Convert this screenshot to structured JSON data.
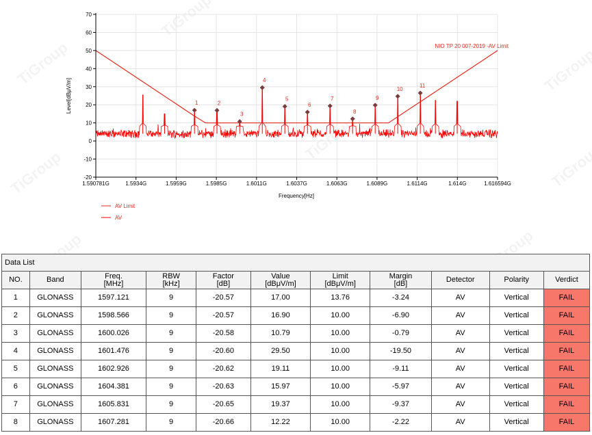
{
  "chart_data": {
    "type": "line",
    "xlabel": "Frequency[Hz]",
    "ylabel": "Level[dBμV/m]",
    "xlim": [
      1.590781,
      1.616594
    ],
    "ylim": [
      -20,
      70
    ],
    "y_ticks": [
      -20,
      -10,
      0,
      10,
      20,
      30,
      40,
      50,
      60,
      70
    ],
    "x_tick_labels": [
      "1.590781G",
      "1.5934G",
      "1.5959G",
      "1.5985G",
      "1.6011G",
      "1.6037G",
      "1.6063G",
      "1.6089G",
      "1.6114G",
      "1.614G",
      "1.616594G"
    ],
    "grid": true,
    "legend_placement": "bottom-left",
    "limit_annotation": "NIO TP 20 007-2019 -AV Limit",
    "series": [
      {
        "name": "AV Limit",
        "color": "#e8291c",
        "x": [
          1.590781,
          1.597121,
          1.59783,
          1.60958,
          1.616594
        ],
        "y": [
          50.0,
          13.76,
          10.0,
          10.0,
          50.0
        ]
      },
      {
        "name": "AV",
        "color": "#ff0000",
        "noise_floor_range": [
          0,
          8
        ],
        "spurs": [
          {
            "x": 1.5938,
            "y": 25.5
          },
          {
            "x": 1.5952,
            "y": 15.0
          },
          {
            "x": 1.6126,
            "y": 22.5
          },
          {
            "x": 1.614,
            "y": 22.0
          }
        ]
      }
    ],
    "markers": [
      {
        "label": "1",
        "x": 1.597121,
        "y": 17.0
      },
      {
        "label": "2",
        "x": 1.598566,
        "y": 16.9
      },
      {
        "label": "3",
        "x": 1.600026,
        "y": 10.79
      },
      {
        "label": "4",
        "x": 1.601476,
        "y": 29.5
      },
      {
        "label": "5",
        "x": 1.602926,
        "y": 19.11
      },
      {
        "label": "6",
        "x": 1.604381,
        "y": 15.97
      },
      {
        "label": "7",
        "x": 1.605831,
        "y": 19.37
      },
      {
        "label": "8",
        "x": 1.607281,
        "y": 12.22
      },
      {
        "label": "9",
        "x": 1.608731,
        "y": 19.8
      },
      {
        "label": "10",
        "x": 1.610181,
        "y": 24.7
      },
      {
        "label": "11",
        "x": 1.611631,
        "y": 26.5
      }
    ]
  },
  "watermark_text": "TiGroup",
  "table": {
    "title": "Data List",
    "headers": [
      [
        "NO."
      ],
      [
        "Band"
      ],
      [
        "Freq.",
        "[MHz]"
      ],
      [
        "RBW",
        "[kHz]"
      ],
      [
        "Factor",
        "[dB]"
      ],
      [
        "Value",
        "[dBμV/m]"
      ],
      [
        "Limit",
        "[dBμV/m]"
      ],
      [
        "Margin",
        "[dB]"
      ],
      [
        "Detector"
      ],
      [
        "Polarity"
      ],
      [
        "Verdict"
      ]
    ],
    "rows": [
      [
        "1",
        "GLONASS",
        "1597.121",
        "9",
        "-20.57",
        "17.00",
        "13.76",
        "-3.24",
        "AV",
        "Vertical",
        "FAIL"
      ],
      [
        "2",
        "GLONASS",
        "1598.566",
        "9",
        "-20.57",
        "16.90",
        "10.00",
        "-6.90",
        "AV",
        "Vertical",
        "FAIL"
      ],
      [
        "3",
        "GLONASS",
        "1600.026",
        "9",
        "-20.58",
        "10.79",
        "10.00",
        "-0.79",
        "AV",
        "Vertical",
        "FAIL"
      ],
      [
        "4",
        "GLONASS",
        "1601.476",
        "9",
        "-20.60",
        "29.50",
        "10.00",
        "-19.50",
        "AV",
        "Vertical",
        "FAIL"
      ],
      [
        "5",
        "GLONASS",
        "1602.926",
        "9",
        "-20.62",
        "19.11",
        "10.00",
        "-9.11",
        "AV",
        "Vertical",
        "FAIL"
      ],
      [
        "6",
        "GLONASS",
        "1604.381",
        "9",
        "-20.63",
        "15.97",
        "10.00",
        "-5.97",
        "AV",
        "Vertical",
        "FAIL"
      ],
      [
        "7",
        "GLONASS",
        "1605.831",
        "9",
        "-20.65",
        "19.37",
        "10.00",
        "-9.37",
        "AV",
        "Vertical",
        "FAIL"
      ],
      [
        "8",
        "GLONASS",
        "1607.281",
        "9",
        "-20.66",
        "12.22",
        "10.00",
        "-2.22",
        "AV",
        "Vertical",
        "FAIL"
      ]
    ],
    "fail_color": "#f8776b"
  }
}
